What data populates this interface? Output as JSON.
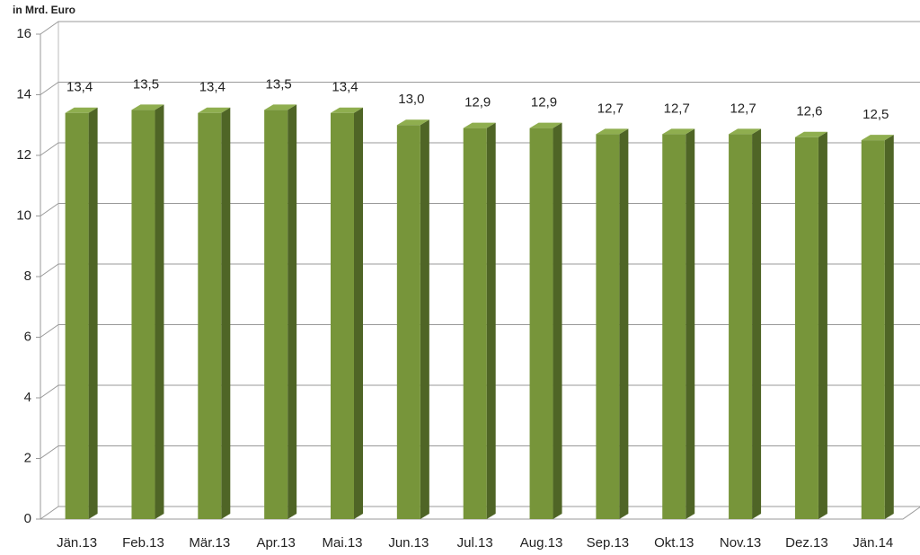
{
  "chart_data": {
    "type": "bar3d",
    "y_axis_label": "in Mrd. Euro",
    "categories": [
      "Jän.13",
      "Feb.13",
      "Mär.13",
      "Apr.13",
      "Mai.13",
      "Jun.13",
      "Jul.13",
      "Aug.13",
      "Sep.13",
      "Okt.13",
      "Nov.13",
      "Dez.13",
      "Jän.14"
    ],
    "values": [
      13.4,
      13.5,
      13.4,
      13.5,
      13.4,
      13.0,
      12.9,
      12.9,
      12.7,
      12.7,
      12.7,
      12.6,
      12.5
    ],
    "value_labels": [
      "13,4",
      "13,5",
      "13,4",
      "13,5",
      "13,4",
      "13,0",
      "12,9",
      "12,9",
      "12,7",
      "12,7",
      "12,7",
      "12,6",
      "12,5"
    ],
    "color": "#77953a",
    "ylim": [
      0,
      16
    ],
    "yticks": [
      0,
      2,
      4,
      6,
      8,
      10,
      12,
      14,
      16
    ],
    "grid": true
  }
}
